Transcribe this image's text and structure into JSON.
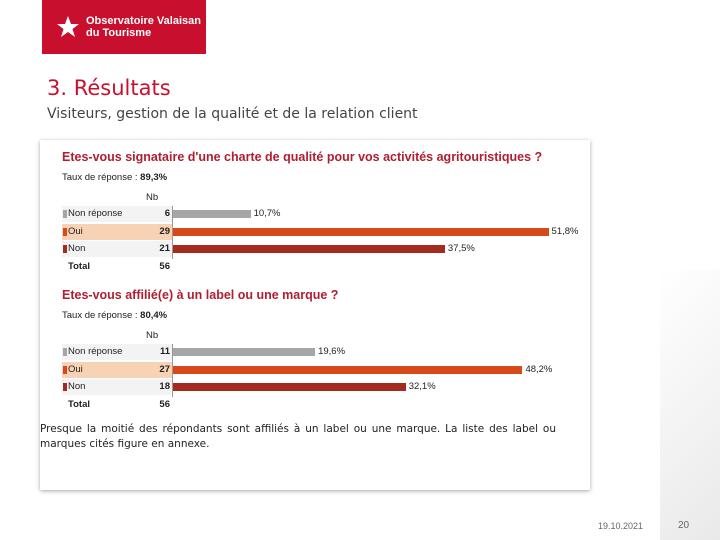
{
  "logo": {
    "line1": "Observatoire Valaisan",
    "line2": "du Tourisme"
  },
  "title": "3. Résultats",
  "subtitle": "Visiteurs, gestion de la qualité et de la relation client",
  "chart_data": [
    {
      "type": "bar",
      "title": "Etes-vous signataire d'une charte de qualité pour vos activités agritouristiques ?",
      "response_rate_label": "Taux de réponse :",
      "response_rate_value": "89,3%",
      "column_header": "Nb",
      "categories": [
        "Non réponse",
        "Oui",
        "Non"
      ],
      "counts": [
        "6",
        "29",
        "21"
      ],
      "values": [
        10.7,
        51.8,
        37.5
      ],
      "value_labels": [
        "10,7%",
        "51,8%",
        "37,5%"
      ],
      "colors": [
        "#a6a6a6",
        "#d8491a",
        "#a52a1f"
      ],
      "total_label": "Total",
      "total_value": "56"
    },
    {
      "type": "bar",
      "title": "Etes-vous affilié(e) à un label ou une marque ?",
      "response_rate_label": "Taux de réponse :",
      "response_rate_value": "80,4%",
      "column_header": "Nb",
      "categories": [
        "Non réponse",
        "Oui",
        "Non"
      ],
      "counts": [
        "11",
        "27",
        "18"
      ],
      "values": [
        19.6,
        48.2,
        32.1
      ],
      "value_labels": [
        "19,6%",
        "48,2%",
        "32,1%"
      ],
      "colors": [
        "#a6a6a6",
        "#d8491a",
        "#a52a1f"
      ],
      "total_label": "Total",
      "total_value": "56"
    }
  ],
  "body_text": "Presque la moitié des répondants sont affiliés à un label ou une marque. La liste des label ou marques cités figure en annexe.",
  "footer": {
    "date": "19.10.2021",
    "page": "20"
  }
}
